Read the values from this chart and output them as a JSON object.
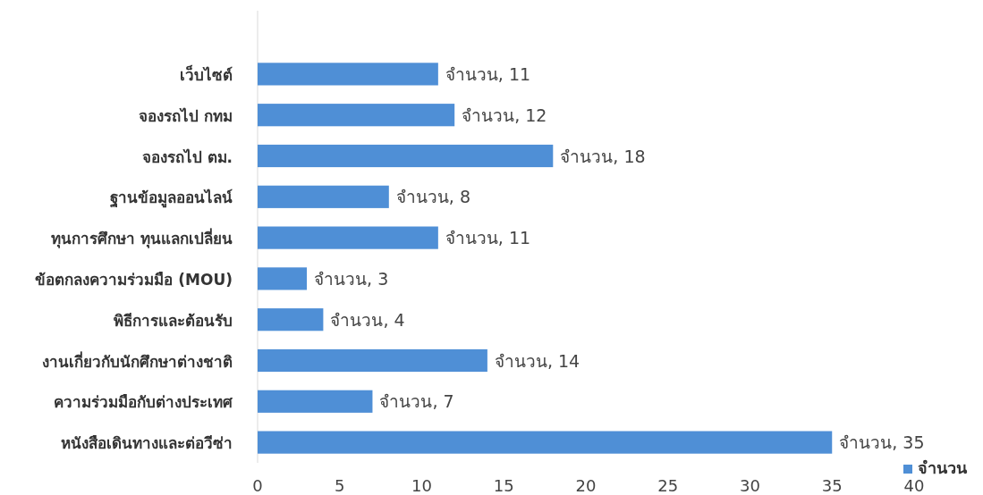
{
  "chart_data": {
    "type": "bar",
    "orientation": "horizontal",
    "categories": [
      "เว็บไซต์",
      "จองรถไป กทม",
      "จองรถไป ตม.",
      "ฐานข้อมูลออนไลน์",
      "ทุนการศึกษา ทุนแลกเปลี่ยน",
      "ข้อตกลงความร่วมมือ (MOU)",
      "พิธีการและต้อนรับ",
      "งานเกี่ยวกับนักศึกษาต่างชาติ",
      "ความร่วมมือกับต่างประเทศ",
      "หนังสือเดินทางและต่อวีซ่า"
    ],
    "series": [
      {
        "name": "จำนวน",
        "color": "#4f8fd6",
        "values": [
          11,
          12,
          18,
          8,
          11,
          3,
          4,
          14,
          7,
          35
        ],
        "value_labels": [
          "จำนวน, 11",
          "จำนวน, 12",
          "จำนวน, 18",
          "จำนวน, 8",
          "จำนวน, 11",
          "จำนวน, 3",
          "จำนวน, 4",
          "จำนวน, 14",
          "จำนวน, 7",
          "จำนวน, 35"
        ]
      }
    ],
    "xlim": [
      0,
      40
    ],
    "xticks": [
      0,
      5,
      10,
      15,
      20,
      25,
      30,
      35,
      40
    ],
    "legend": "bottom right"
  }
}
